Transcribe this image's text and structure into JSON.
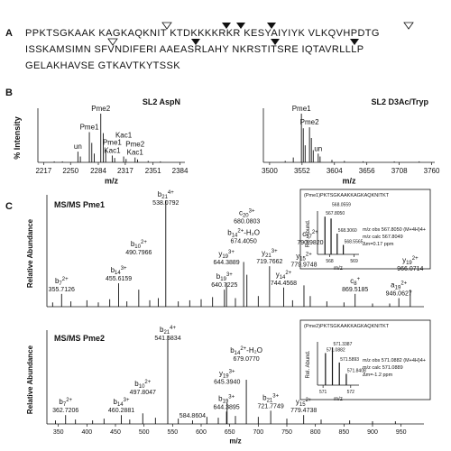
{
  "panel_labels": [
    "A",
    "B",
    "C"
  ],
  "sequence": [
    "PPKTSGKAAK KAGKAQKNIT KTDKKKKRKR KESYAIYIYK VLKQVHPDTG",
    "ISSKAMSIMN SFVNDIFERI AAEASRLAHY NKRSTITSRE IQTAVRLLLP",
    "GELAKHAVSE GTKAVTKYTSSK"
  ],
  "chart_data": [
    {
      "type": "stem",
      "title": "SL2 AspN",
      "xlabel": "m/z",
      "ylabel": "% Intensity",
      "xlim": [
        2210,
        2390
      ],
      "xticks": [
        2217,
        2250,
        2284,
        2317,
        2351,
        2384
      ],
      "ylim": [
        0,
        100
      ],
      "x": [
        2230,
        2240,
        2262,
        2276,
        2279,
        2290,
        2293,
        2304,
        2318,
        2332,
        2345,
        2360
      ],
      "values": [
        2,
        2,
        12,
        40,
        18,
        60,
        25,
        9,
        7,
        6,
        3,
        2
      ],
      "labeled_peaks": [
        {
          "label_lines": [
            "un"
          ],
          "x": 2259,
          "y": 22
        },
        {
          "label_lines": [
            "Pme1"
          ],
          "x": 2273,
          "y": 62
        },
        {
          "label_lines": [
            "Pme2"
          ],
          "x": 2287,
          "y": 100
        },
        {
          "label_lines": [
            "Pme1",
            "Kac1"
          ],
          "x": 2301,
          "y": 14
        },
        {
          "label_lines": [
            "Kac1"
          ],
          "x": 2315,
          "y": 12
        },
        {
          "label_lines": [
            "Pme2",
            "Kac1"
          ],
          "x": 2329,
          "y": 10
        }
      ]
    },
    {
      "type": "stem",
      "title": "SL2 D3Ac/Tryp",
      "xlabel": "m/z",
      "xlim": [
        3490,
        3765
      ],
      "xticks": [
        3500,
        3552,
        3604,
        3656,
        3708,
        3760
      ],
      "ylim": [
        0,
        100
      ],
      "x": [
        3525,
        3538,
        3554,
        3557,
        3567,
        3570,
        3581,
        3600,
        3620,
        3650,
        3700,
        3740
      ],
      "values": [
        3,
        10,
        70,
        35,
        50,
        25,
        12,
        5,
        3,
        2,
        2,
        2
      ],
      "labeled_peaks": [
        {
          "label_lines": [
            "Pme1"
          ],
          "x": 3551,
          "y": 100
        },
        {
          "label_lines": [
            "Pme2"
          ],
          "x": 3564,
          "y": 72
        },
        {
          "label_lines": [
            "un"
          ],
          "x": 3578,
          "y": 18
        }
      ]
    },
    {
      "type": "stem",
      "title": "MS/MS Pme1",
      "ylabel": "Relative Abundance",
      "xlim": [
        330,
        990
      ],
      "ylim": [
        0,
        100
      ],
      "x": [
        340,
        372,
        400,
        420,
        440,
        470,
        510,
        525,
        560,
        580,
        600,
        620,
        660,
        700,
        760,
        820,
        850,
        900,
        930
      ],
      "values": [
        4,
        5,
        6,
        4,
        7,
        5,
        6,
        8,
        5,
        6,
        7,
        9,
        8,
        10,
        6,
        5,
        4,
        3,
        3
      ],
      "labeled_peaks": [
        {
          "ion": "b",
          "sub": "7",
          "sup": "2+",
          "x": 355.7126,
          "x_label": "355.7126",
          "y": 12
        },
        {
          "ion": "b",
          "sub": "14",
          "sup": "3+",
          "x": 455.6159,
          "x_label": "455.6159",
          "y": 22
        },
        {
          "ion": "b",
          "sub": "10",
          "sup": "2+",
          "x": 490.7966,
          "x_label": "490.7966",
          "y": 16
        },
        {
          "ion": "b",
          "sub": "21",
          "sup": "4+",
          "x": 538.0792,
          "x_label": "538.0792",
          "y": 100
        },
        {
          "ion": "b",
          "sub": "19",
          "sup": "3+",
          "x": 640.7225,
          "x_label": "640.7225",
          "y": 16
        },
        {
          "ion": "y",
          "sub": "19",
          "sup": "3+",
          "x": 644.3889,
          "x_label": "644.3889",
          "y": 22
        },
        {
          "ion": "b",
          "sub": "14",
          "sup": "2+",
          "loss": "-H₂O",
          "x": 674.405,
          "x_label": "674.4050",
          "y": 42
        },
        {
          "ion": "c",
          "sub": "20",
          "sup": "3+",
          "x": 680.0803,
          "x_label": "680.0803",
          "y": 30
        },
        {
          "ion": "y",
          "sub": "21",
          "sup": "3+",
          "x": 719.7662,
          "x_label": "719.7662",
          "y": 38
        },
        {
          "ion": "y",
          "sub": "14",
          "sup": "2+",
          "x": 744.4568,
          "x_label": "744.4568",
          "y": 18
        },
        {
          "ion": "y",
          "sub": "15",
          "sup": "2+",
          "x": 779.9748,
          "x_label": "779.9748",
          "y": 20
        },
        {
          "ion": "c",
          "sub": "17",
          "sup": "2+",
          "x": 790.982,
          "x_label": "790.9820",
          "y": 10
        },
        {
          "ion": "c",
          "sub": "8",
          "sup": "+",
          "x": 869.5185,
          "x_label": "869.5185",
          "y": 12
        },
        {
          "ion": "a",
          "sub": "19",
          "sup": "2+",
          "x": 946.0627,
          "x_label": "946.0627",
          "y": 8
        },
        {
          "ion": "y",
          "sub": "19",
          "sup": "2+",
          "x": 966.0714,
          "x_label": "966.0714",
          "y": 16
        }
      ]
    },
    {
      "type": "stem",
      "title": "MS/MS Pme2",
      "xlabel": "m/z",
      "ylabel": "Relative Abundance",
      "xlim": [
        330,
        990
      ],
      "xticks": [
        350,
        400,
        450,
        500,
        550,
        600,
        650,
        700,
        750,
        800,
        850,
        900,
        950
      ],
      "ylim": [
        0,
        100
      ],
      "x": [
        345,
        380,
        410,
        430,
        475,
        520,
        560,
        610,
        630,
        660,
        700,
        750,
        810,
        860,
        900,
        940
      ],
      "values": [
        4,
        5,
        4,
        6,
        5,
        7,
        6,
        8,
        7,
        9,
        8,
        6,
        5,
        4,
        3,
        3
      ],
      "labeled_peaks": [
        {
          "ion": "b",
          "sub": "7",
          "sup": "2+",
          "x": 362.7206,
          "x_label": "362.7206",
          "y": 10
        },
        {
          "ion": "b",
          "sub": "14",
          "sup": "3+",
          "x": 460.2881,
          "x_label": "460.2881",
          "y": 10
        },
        {
          "ion": "b",
          "sub": "10",
          "sup": "2+",
          "x": 497.8047,
          "x_label": "497.8047",
          "y": 12
        },
        {
          "ion": "b",
          "sub": "21",
          "sup": "4+",
          "x": 541.5834,
          "x_label": "541.5834",
          "y": 100
        },
        {
          "x": 584.8604,
          "x_label": "584.8604",
          "y": 4
        },
        {
          "ion": "b",
          "sub": "19",
          "sup": "3+",
          "x": 644.3895,
          "x_label": "644.3895",
          "y": 14
        },
        {
          "ion": "y",
          "sub": "19",
          "sup": "3+",
          "x": 645.394,
          "x_label": "645.3940",
          "y": 24
        },
        {
          "ion": "b",
          "sub": "14",
          "sup": "2+",
          "loss": "-H₂O",
          "x": 679.077,
          "x_label": "679.0770",
          "y": 50
        },
        {
          "ion": "b",
          "sub": "21",
          "sup": "3+",
          "x": 721.7749,
          "x_label": "721.7749",
          "y": 15
        },
        {
          "ion": "y",
          "sub": "15",
          "sup": "2+",
          "x": 779.4738,
          "x_label": "779.4738",
          "y": 10
        }
      ]
    },
    {
      "type": "stem",
      "title": "(Pme1)PKTSGKAAKKAGKAQKNITKT",
      "xlabel": "m/z",
      "ylabel": "Rel. Abund.",
      "xlim": [
        567.5,
        569.2
      ],
      "xticks": [
        568,
        569
      ],
      "ylim": [
        0,
        110
      ],
      "x": [
        567.805,
        568.0559,
        568.306,
        568.5565
      ],
      "values": [
        100,
        95,
        55,
        25
      ],
      "x_labels": [
        "567.8050",
        "568.0559",
        "568.3060",
        "568.5565"
      ],
      "annotations": [
        "m/z obs 567.8050 (M+4H)4+",
        "m/z calc 567.8049",
        "Δm=0.17 ppm"
      ]
    },
    {
      "type": "stem",
      "title": "(Pme2)PKTSGKAAKKAGKAQKNITKT",
      "xlabel": "m/z",
      "ylabel": "Rel. Abund.",
      "xlim": [
        570.8,
        572.3
      ],
      "xticks": [
        571,
        572
      ],
      "ylim": [
        0,
        110
      ],
      "x": [
        571.0882,
        571.3387,
        571.5893,
        571.8408
      ],
      "values": [
        85,
        100,
        60,
        30
      ],
      "x_labels": [
        "571.0882",
        "571.3387",
        "571.5893",
        "571.8408"
      ],
      "annotations": [
        "m/z obs 571.0882 (M+4H)4+",
        "m/z calc 571.0889",
        "Δm=-1.2 ppm"
      ]
    }
  ]
}
